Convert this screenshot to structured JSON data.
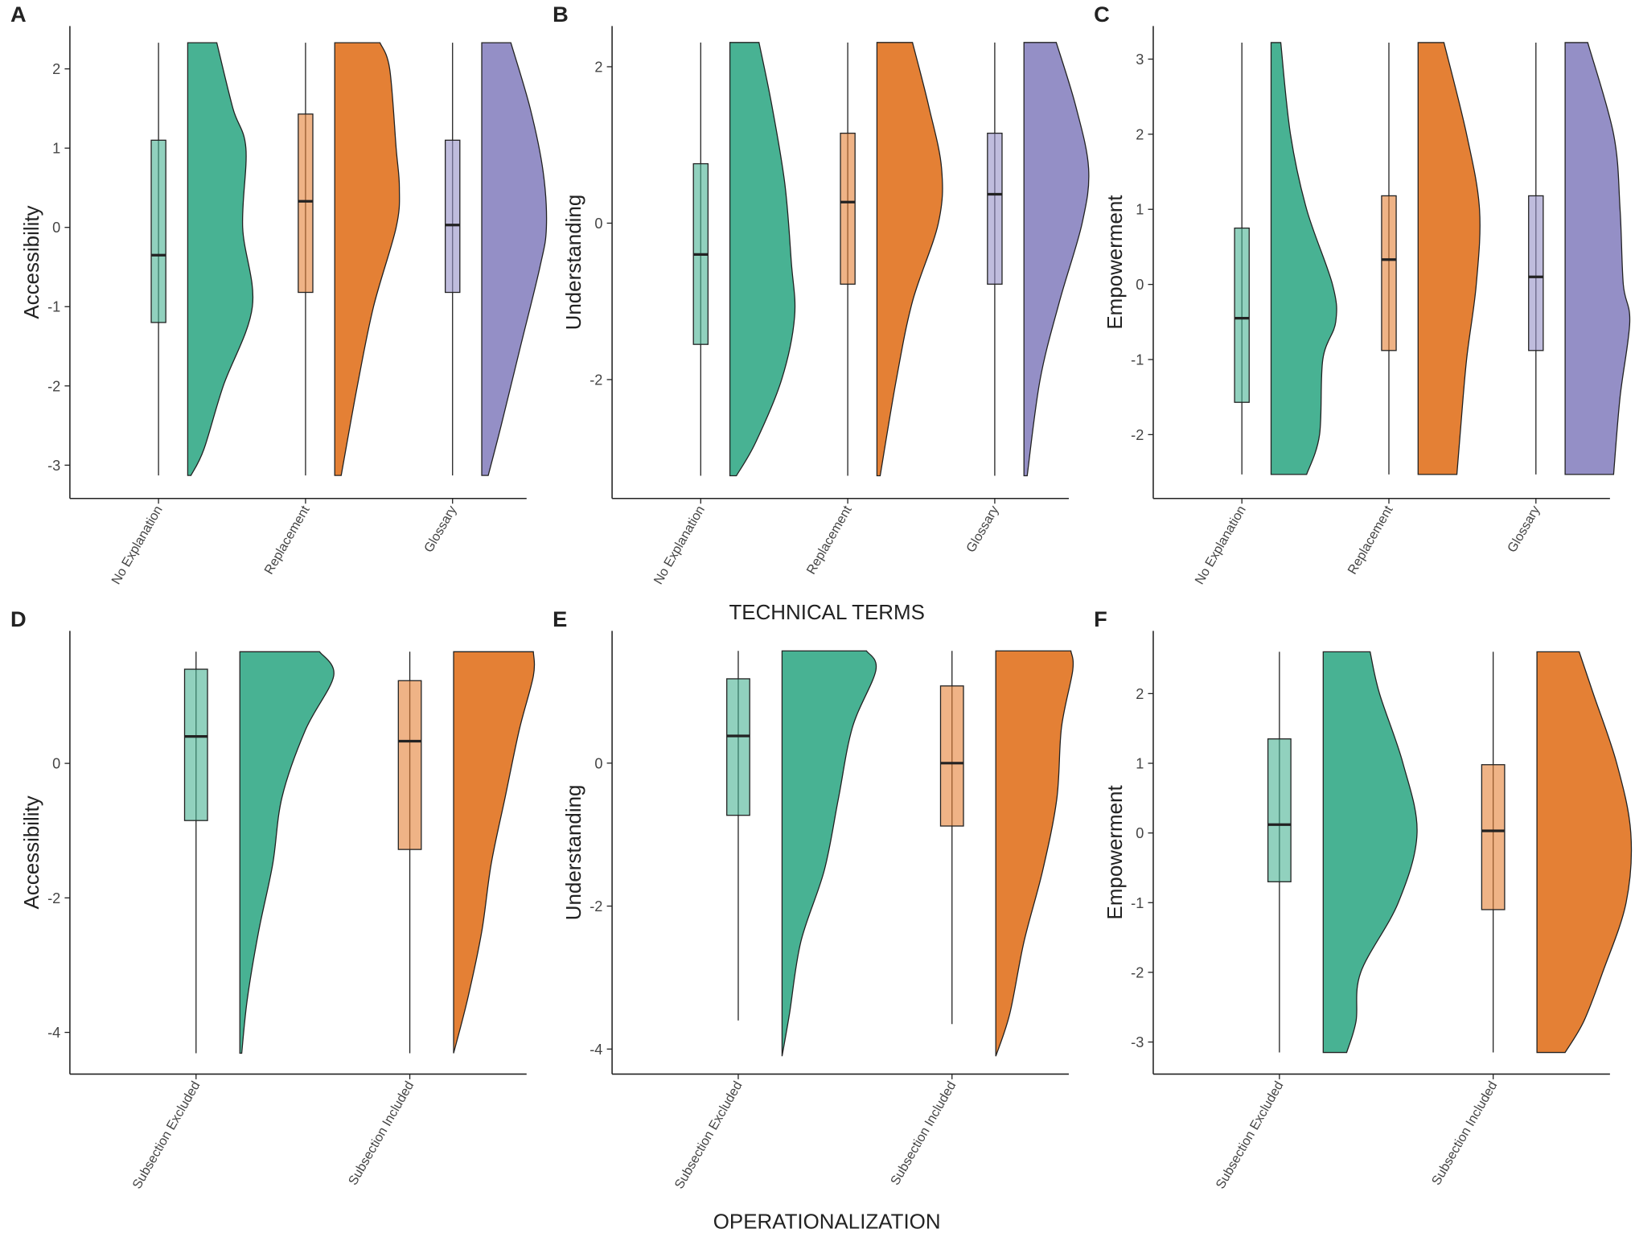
{
  "chart_data": [
    {
      "type": "raincloud",
      "label": "A",
      "ylabel": "Accessibility",
      "categories": [
        "No Explanation",
        "Replacement",
        "Glossary"
      ],
      "colors": [
        "#48b293",
        "#e48035",
        "#948fc6"
      ],
      "boxes": [
        {
          "min": -3.13,
          "q1": -1.2,
          "median": -0.35,
          "q3": 1.1,
          "max": 2.33
        },
        {
          "min": -3.13,
          "q1": -0.82,
          "median": 0.33,
          "q3": 1.43,
          "max": 2.33
        },
        {
          "min": -3.13,
          "q1": -0.82,
          "median": 0.03,
          "q3": 1.1,
          "max": 2.33
        }
      ],
      "density": [
        [
          {
            "y": 2.33,
            "density": 0.45
          },
          {
            "y": 1.5,
            "density": 0.7
          },
          {
            "y": 1,
            "density": 0.9
          },
          {
            "y": 0,
            "density": 0.85
          },
          {
            "y": -1,
            "density": 1
          },
          {
            "y": -2,
            "density": 0.55
          },
          {
            "y": -2.8,
            "density": 0.25
          },
          {
            "y": -3.13,
            "density": 0.05
          }
        ],
        [
          {
            "y": 2.33,
            "density": 0.7
          },
          {
            "y": 2,
            "density": 0.85
          },
          {
            "y": 1,
            "density": 0.95
          },
          {
            "y": 0.5,
            "density": 1
          },
          {
            "y": 0,
            "density": 0.95
          },
          {
            "y": -1,
            "density": 0.6
          },
          {
            "y": -2,
            "density": 0.35
          },
          {
            "y": -3.13,
            "density": 0.1
          }
        ],
        [
          {
            "y": 2.33,
            "density": 0.45
          },
          {
            "y": 1.5,
            "density": 0.75
          },
          {
            "y": 0.7,
            "density": 0.95
          },
          {
            "y": 0,
            "density": 1
          },
          {
            "y": -0.5,
            "density": 0.9
          },
          {
            "y": -1.5,
            "density": 0.6
          },
          {
            "y": -2.5,
            "density": 0.3
          },
          {
            "y": -3.13,
            "density": 0.1
          }
        ]
      ],
      "ylim": [
        -3.42,
        2.54
      ],
      "yticks": [
        -3,
        -2,
        -1,
        0,
        1,
        2
      ]
    },
    {
      "type": "raincloud",
      "label": "B",
      "ylabel": "Understanding",
      "xlabel": "TECHNICAL TERMS",
      "categories": [
        "No Explanation",
        "Replacement",
        "Glossary"
      ],
      "colors": [
        "#48b293",
        "#e48035",
        "#948fc6"
      ],
      "boxes": [
        {
          "min": -3.23,
          "q1": -1.55,
          "median": -0.4,
          "q3": 0.76,
          "max": 2.31
        },
        {
          "min": -3.23,
          "q1": -0.78,
          "median": 0.27,
          "q3": 1.15,
          "max": 2.31
        },
        {
          "min": -3.23,
          "q1": -0.78,
          "median": 0.37,
          "q3": 1.15,
          "max": 2.31
        }
      ],
      "density": [
        [
          {
            "y": 2.31,
            "density": 0.45
          },
          {
            "y": 1.5,
            "density": 0.65
          },
          {
            "y": 0.5,
            "density": 0.85
          },
          {
            "y": -0.5,
            "density": 0.95
          },
          {
            "y": -1.2,
            "density": 1
          },
          {
            "y": -2,
            "density": 0.8
          },
          {
            "y": -2.8,
            "density": 0.4
          },
          {
            "y": -3.23,
            "density": 0.1
          }
        ],
        [
          {
            "y": 2.31,
            "density": 0.55
          },
          {
            "y": 1.5,
            "density": 0.8
          },
          {
            "y": 0.7,
            "density": 1
          },
          {
            "y": 0,
            "density": 0.95
          },
          {
            "y": -1,
            "density": 0.55
          },
          {
            "y": -2,
            "density": 0.3
          },
          {
            "y": -3.23,
            "density": 0.05
          }
        ],
        [
          {
            "y": 2.31,
            "density": 0.5
          },
          {
            "y": 1.5,
            "density": 0.8
          },
          {
            "y": 0.7,
            "density": 1
          },
          {
            "y": 0,
            "density": 0.9
          },
          {
            "y": -1,
            "density": 0.55
          },
          {
            "y": -2,
            "density": 0.25
          },
          {
            "y": -3.23,
            "density": 0.05
          }
        ]
      ],
      "ylim": [
        -3.52,
        2.52
      ],
      "yticks": [
        -2,
        0,
        2
      ]
    },
    {
      "type": "raincloud",
      "label": "C",
      "ylabel": "Empowerment",
      "categories": [
        "No Explanation",
        "Replacement",
        "Glossary"
      ],
      "colors": [
        "#48b293",
        "#e48035",
        "#948fc6"
      ],
      "boxes": [
        {
          "min": -2.53,
          "q1": -1.57,
          "median": -0.45,
          "q3": 0.75,
          "max": 3.22
        },
        {
          "min": -2.53,
          "q1": -0.88,
          "median": 0.33,
          "q3": 1.18,
          "max": 3.22
        },
        {
          "min": -2.53,
          "q1": -0.88,
          "median": 0.1,
          "q3": 1.18,
          "max": 3.22
        }
      ],
      "density": [
        [
          {
            "y": 3.22,
            "density": 0.15
          },
          {
            "y": 2,
            "density": 0.3
          },
          {
            "y": 1,
            "density": 0.55
          },
          {
            "y": 0,
            "density": 0.95
          },
          {
            "y": -0.5,
            "density": 1
          },
          {
            "y": -1,
            "density": 0.8
          },
          {
            "y": -2,
            "density": 0.75
          },
          {
            "y": -2.53,
            "density": 0.55
          }
        ],
        [
          {
            "y": 3.22,
            "density": 0.4
          },
          {
            "y": 2,
            "density": 0.75
          },
          {
            "y": 1,
            "density": 0.95
          },
          {
            "y": 0,
            "density": 0.9
          },
          {
            "y": -1,
            "density": 0.75
          },
          {
            "y": -2,
            "density": 0.65
          },
          {
            "y": -2.53,
            "density": 0.6
          }
        ],
        [
          {
            "y": 3.22,
            "density": 0.35
          },
          {
            "y": 2,
            "density": 0.75
          },
          {
            "y": 1,
            "density": 0.85
          },
          {
            "y": 0,
            "density": 0.9
          },
          {
            "y": -0.5,
            "density": 1
          },
          {
            "y": -1.5,
            "density": 0.85
          },
          {
            "y": -2.53,
            "density": 0.75
          }
        ]
      ],
      "ylim": [
        -2.85,
        3.44
      ],
      "yticks": [
        -2,
        -1,
        0,
        1,
        2,
        3
      ]
    },
    {
      "type": "raincloud",
      "label": "D",
      "ylabel": "Accessibility",
      "categories": [
        "Subsection Excluded",
        "Subsection Included"
      ],
      "colors": [
        "#48b293",
        "#e48035"
      ],
      "boxes": [
        {
          "min": -4.31,
          "q1": -0.85,
          "median": 0.4,
          "q3": 1.4,
          "max": 1.66
        },
        {
          "min": -4.31,
          "q1": -1.28,
          "median": 0.33,
          "q3": 1.23,
          "max": 1.66
        }
      ],
      "density": [
        [
          {
            "y": 1.66,
            "density": 0.85
          },
          {
            "y": 1.3,
            "density": 1
          },
          {
            "y": 0.5,
            "density": 0.7
          },
          {
            "y": -0.5,
            "density": 0.45
          },
          {
            "y": -1.5,
            "density": 0.35
          },
          {
            "y": -2.5,
            "density": 0.2
          },
          {
            "y": -3.5,
            "density": 0.08
          },
          {
            "y": -4.31,
            "density": 0.02
          }
        ],
        [
          {
            "y": 1.66,
            "density": 0.85
          },
          {
            "y": 1.3,
            "density": 0.85
          },
          {
            "y": 0.5,
            "density": 0.7
          },
          {
            "y": -0.5,
            "density": 0.55
          },
          {
            "y": -1.5,
            "density": 0.4
          },
          {
            "y": -2.5,
            "density": 0.3
          },
          {
            "y": -3.5,
            "density": 0.15
          },
          {
            "y": -4.31,
            "density": 0
          }
        ]
      ],
      "ylim": [
        -4.62,
        1.97
      ],
      "yticks": [
        -4,
        -2,
        0
      ]
    },
    {
      "type": "raincloud",
      "label": "E",
      "ylabel": "Understanding",
      "xlabel": "OPERATIONALIZATION",
      "categories": [
        "Subsection Excluded",
        "Subsection Included"
      ],
      "colors": [
        "#48b293",
        "#e48035"
      ],
      "boxes": [
        {
          "min": -3.6,
          "q1": -0.73,
          "median": 0.38,
          "q3": 1.18,
          "max": 1.57
        },
        {
          "min": -3.65,
          "q1": -0.88,
          "median": 0,
          "q3": 1.08,
          "max": 1.57
        }
      ],
      "density": [
        [
          {
            "y": 1.57,
            "density": 0.9
          },
          {
            "y": 1.3,
            "density": 1
          },
          {
            "y": 0.5,
            "density": 0.75
          },
          {
            "y": -0.5,
            "density": 0.6
          },
          {
            "y": -1.5,
            "density": 0.45
          },
          {
            "y": -2.5,
            "density": 0.2
          },
          {
            "y": -3.5,
            "density": 0.08
          },
          {
            "y": -4.1,
            "density": 0
          }
        ],
        [
          {
            "y": 1.57,
            "density": 0.8
          },
          {
            "y": 1.3,
            "density": 0.82
          },
          {
            "y": 0.5,
            "density": 0.7
          },
          {
            "y": -0.5,
            "density": 0.65
          },
          {
            "y": -1.5,
            "density": 0.5
          },
          {
            "y": -2.5,
            "density": 0.3
          },
          {
            "y": -3.5,
            "density": 0.15
          },
          {
            "y": -4.1,
            "density": 0
          }
        ]
      ],
      "ylim": [
        -4.35,
        1.85
      ],
      "yticks": [
        -4,
        -2,
        0
      ]
    },
    {
      "type": "raincloud",
      "label": "F",
      "ylabel": "Empowerment",
      "categories": [
        "Subsection Excluded",
        "Subsection Included"
      ],
      "colors": [
        "#48b293",
        "#e48035"
      ],
      "boxes": [
        {
          "min": -3.15,
          "q1": -0.7,
          "median": 0.12,
          "q3": 1.35,
          "max": 2.6
        },
        {
          "min": -3.15,
          "q1": -1.1,
          "median": 0.03,
          "q3": 0.98,
          "max": 2.6
        }
      ],
      "density": [
        [
          {
            "y": 2.6,
            "density": 0.5
          },
          {
            "y": 2,
            "density": 0.6
          },
          {
            "y": 1,
            "density": 0.85
          },
          {
            "y": 0,
            "density": 1
          },
          {
            "y": -1,
            "density": 0.8
          },
          {
            "y": -2,
            "density": 0.4
          },
          {
            "y": -2.7,
            "density": 0.35
          },
          {
            "y": -3.15,
            "density": 0.25
          }
        ],
        [
          {
            "y": 2.6,
            "density": 0.45
          },
          {
            "y": 2,
            "density": 0.6
          },
          {
            "y": 1,
            "density": 0.85
          },
          {
            "y": 0,
            "density": 1
          },
          {
            "y": -1,
            "density": 0.95
          },
          {
            "y": -2,
            "density": 0.7
          },
          {
            "y": -2.7,
            "density": 0.5
          },
          {
            "y": -3.15,
            "density": 0.3
          }
        ]
      ],
      "ylim": [
        -3.46,
        2.9
      ],
      "yticks": [
        -3,
        -2,
        -1,
        0,
        1,
        2
      ]
    }
  ]
}
